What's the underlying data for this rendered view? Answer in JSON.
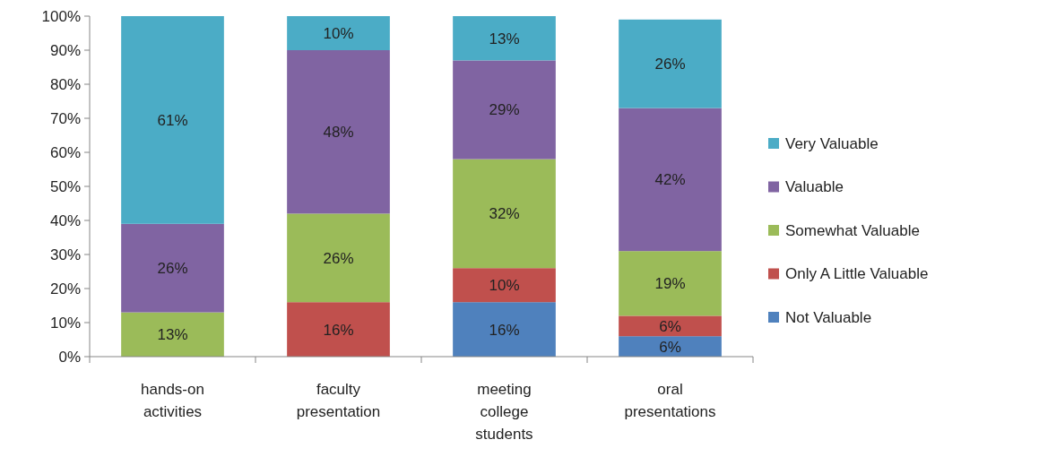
{
  "chart_data": {
    "type": "bar",
    "stacked": true,
    "categories": [
      "hands-on activities",
      "faculty presentation",
      "meeting college students",
      "oral presentations"
    ],
    "series": [
      {
        "name": "Not Valuable",
        "color": "#4f81bd",
        "values": [
          0,
          0,
          16,
          6
        ],
        "value_labels": [
          null,
          null,
          "16%",
          "6%"
        ]
      },
      {
        "name": "Only A Little Valuable",
        "color": "#c0504d",
        "values": [
          0,
          16,
          10,
          6
        ],
        "value_labels": [
          null,
          "16%",
          "10%",
          "6%"
        ]
      },
      {
        "name": "Somewhat Valuable",
        "color": "#9bbb59",
        "values": [
          13,
          26,
          32,
          19
        ],
        "value_labels": [
          "13%",
          "26%",
          "32%",
          "19%"
        ]
      },
      {
        "name": "Valuable",
        "color": "#8064a2",
        "values": [
          26,
          48,
          29,
          42
        ],
        "value_labels": [
          "26%",
          "48%",
          "29%",
          "42%"
        ]
      },
      {
        "name": "Very Valuable",
        "color": "#4bacc6",
        "values": [
          61,
          10,
          13,
          26
        ],
        "value_labels": [
          "61%",
          "10%",
          "13%",
          "26%"
        ]
      }
    ],
    "ylim": [
      0,
      100
    ],
    "yticks": [
      {
        "value": 0,
        "label": "0%"
      },
      {
        "value": 10,
        "label": "10%"
      },
      {
        "value": 20,
        "label": "20%"
      },
      {
        "value": 30,
        "label": "30%"
      },
      {
        "value": 40,
        "label": "40%"
      },
      {
        "value": 50,
        "label": "50%"
      },
      {
        "value": 60,
        "label": "60%"
      },
      {
        "value": 70,
        "label": "70%"
      },
      {
        "value": 80,
        "label": "80%"
      },
      {
        "value": 90,
        "label": "90%"
      },
      {
        "value": 100,
        "label": "100%"
      }
    ],
    "legend": "right"
  }
}
